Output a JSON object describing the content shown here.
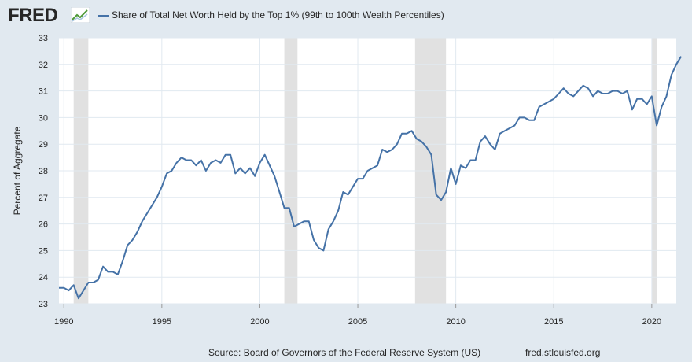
{
  "header": {
    "logo_text": "FRED",
    "legend_label": "Share of Total Net Worth Held by the Top 1% (99th to 100th Wealth Percentiles)"
  },
  "footer": {
    "source": "Source: Board of Governors of the Federal Reserve System (US)",
    "url": "fred.stlouisfed.org"
  },
  "colors": {
    "background": "#e1e9f0",
    "plot_background": "#ffffff",
    "line": "#4572a7",
    "recession": "#e1e1e1",
    "grid": "#e1e9f0",
    "text": "#262626"
  },
  "chart_data": {
    "type": "line",
    "title": "Share of Total Net Worth Held by the Top 1% (99th to 100th Wealth Percentiles)",
    "xlabel": "",
    "ylabel": "Percent of Aggregate",
    "xlim": [
      1989.75,
      2021.25
    ],
    "ylim": [
      23,
      33
    ],
    "x_ticks": [
      1990,
      1995,
      2000,
      2005,
      2010,
      2015,
      2020
    ],
    "x_tick_labels": [
      "1990",
      "1995",
      "2000",
      "2005",
      "2010",
      "2015",
      "2020"
    ],
    "y_ticks": [
      23,
      24,
      25,
      26,
      27,
      28,
      29,
      30,
      31,
      32,
      33
    ],
    "y_tick_labels": [
      "23",
      "24",
      "25",
      "26",
      "27",
      "28",
      "29",
      "30",
      "31",
      "32",
      "33"
    ],
    "grid": true,
    "recessions": [
      [
        1990.5,
        1991.25
      ],
      [
        2001.25,
        2001.92
      ],
      [
        2007.92,
        2009.5
      ],
      [
        2020.0,
        2020.25
      ]
    ],
    "series": [
      {
        "name": "Share of Total Net Worth Held by the Top 1% (99th to 100th Wealth Percentiles)",
        "start": 1989.75,
        "step": 0.25,
        "values": [
          23.6,
          23.6,
          23.5,
          23.7,
          23.2,
          23.5,
          23.8,
          23.8,
          23.9,
          24.4,
          24.2,
          24.2,
          24.1,
          24.6,
          25.2,
          25.4,
          25.7,
          26.1,
          26.4,
          26.7,
          27.0,
          27.4,
          27.9,
          28.0,
          28.3,
          28.5,
          28.4,
          28.4,
          28.2,
          28.4,
          28.0,
          28.3,
          28.4,
          28.3,
          28.6,
          28.6,
          27.9,
          28.1,
          27.9,
          28.1,
          27.8,
          28.3,
          28.6,
          28.2,
          27.8,
          27.2,
          26.6,
          26.6,
          25.9,
          26.0,
          26.1,
          26.1,
          25.4,
          25.1,
          25.0,
          25.8,
          26.1,
          26.5,
          27.2,
          27.1,
          27.4,
          27.7,
          27.7,
          28.0,
          28.1,
          28.2,
          28.8,
          28.7,
          28.8,
          29.0,
          29.4,
          29.4,
          29.5,
          29.2,
          29.1,
          28.9,
          28.6,
          27.1,
          26.9,
          27.2,
          28.1,
          27.5,
          28.2,
          28.1,
          28.4,
          28.4,
          29.1,
          29.3,
          29.0,
          28.8,
          29.4,
          29.5,
          29.6,
          29.7,
          30.0,
          30.0,
          29.9,
          29.9,
          30.4,
          30.5,
          30.6,
          30.7,
          30.9,
          31.1,
          30.9,
          30.8,
          31.0,
          31.2,
          31.1,
          30.8,
          31.0,
          30.9,
          30.9,
          31.0,
          31.0,
          30.9,
          31.0,
          30.3,
          30.7,
          30.7,
          30.5,
          30.8,
          29.7,
          30.4,
          30.8,
          31.6,
          32.0,
          32.3
        ]
      }
    ]
  }
}
